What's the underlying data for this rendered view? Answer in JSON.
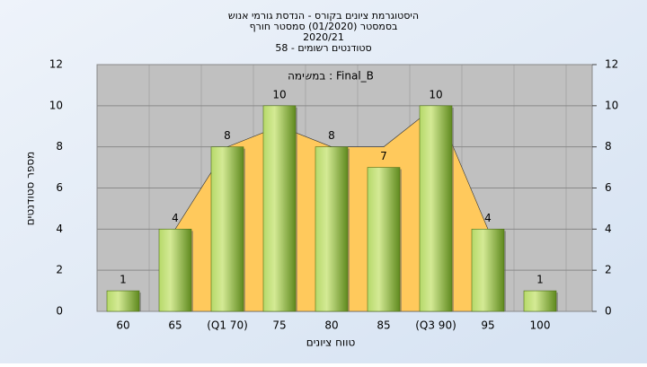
{
  "chart_data": {
    "type": "bar",
    "title": [
      "היסטוגרמת ציונים בקורס - הנדסת גורמי אנוש",
      "בסמסטר  (01/2020)  סמסטר חורף",
      "2020/21",
      "58 - סטודנטים רשומים"
    ],
    "annotation": "במשימה : Final_B",
    "x_label": "טווח ציונים",
    "y_label": "מספר סטודנטים",
    "categories": [
      "60",
      "65",
      "(Q1 70)",
      "75",
      "80",
      "85",
      "(Q3 90)",
      "95",
      "100"
    ],
    "values": [
      1,
      4,
      8,
      10,
      8,
      7,
      10,
      4,
      1
    ],
    "color": "#8db33a",
    "area": {
      "color": "#ffc95c",
      "values": [
        null,
        4,
        8,
        9,
        8,
        8,
        10,
        4,
        null
      ]
    },
    "ylim": [
      0,
      12
    ],
    "yticks": [
      0,
      2,
      4,
      6,
      8,
      10,
      12
    ],
    "y2ticks": [
      0,
      2,
      4,
      6,
      8,
      10,
      12
    ],
    "grid": true
  }
}
